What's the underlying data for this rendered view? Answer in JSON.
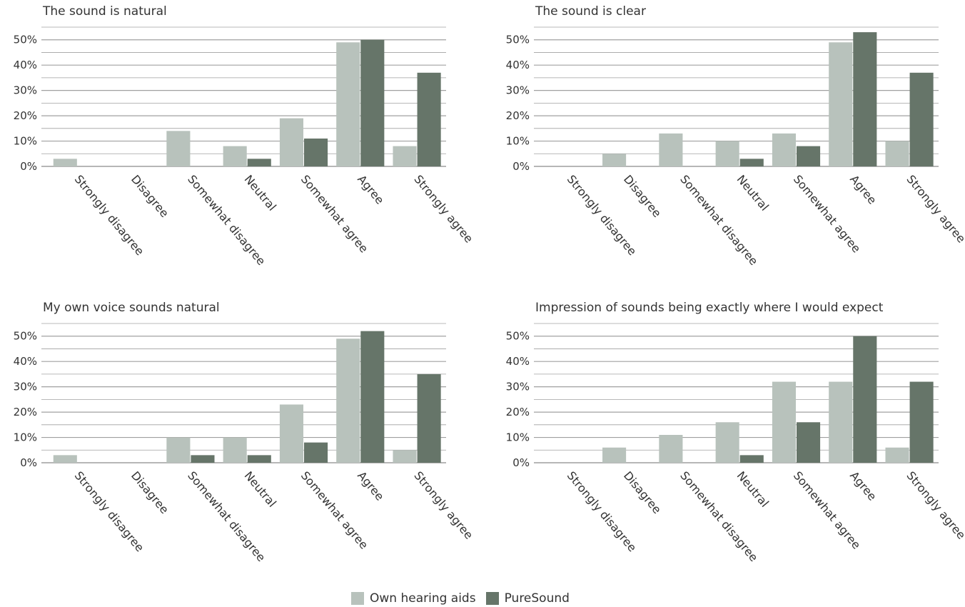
{
  "colors": {
    "own": "#b8c2bc",
    "pure": "#667569",
    "grid": "#a0a0a0",
    "text": "#333333"
  },
  "legend": {
    "own_label": "Own hearing aids",
    "pure_label": "PureSound"
  },
  "chart_data": [
    {
      "type": "bar",
      "title": "The sound is natural",
      "categories": [
        "Strongly disagree",
        "Disagree",
        "Somewhat disagree",
        "Neutral",
        "Somewhat agree",
        "Agree",
        "Strongly agree"
      ],
      "yticks": [
        "0%",
        "10%",
        "20%",
        "30%",
        "40%",
        "50%"
      ],
      "ylim": [
        0,
        55
      ],
      "grid": true,
      "legend": "bottom",
      "series": [
        {
          "name": "Own hearing aids",
          "values": [
            3,
            0,
            14,
            8,
            19,
            49,
            8
          ]
        },
        {
          "name": "PureSound",
          "values": [
            0,
            0,
            0,
            3,
            11,
            50,
            37
          ]
        }
      ]
    },
    {
      "type": "bar",
      "title": "The sound is clear",
      "categories": [
        "Strongly disagree",
        "Disagree",
        "Somewhat disagree",
        "Neutral",
        "Somewhat agree",
        "Agree",
        "Strongly agree"
      ],
      "yticks": [
        "0%",
        "10%",
        "20%",
        "30%",
        "40%",
        "50%"
      ],
      "ylim": [
        0,
        55
      ],
      "grid": true,
      "legend": "bottom",
      "series": [
        {
          "name": "Own hearing aids",
          "values": [
            0,
            5,
            13,
            10,
            13,
            49,
            10
          ]
        },
        {
          "name": "PureSound",
          "values": [
            0,
            0,
            0,
            3,
            8,
            53,
            37
          ]
        }
      ]
    },
    {
      "type": "bar",
      "title": "My own voice sounds natural",
      "categories": [
        "Strongly disagree",
        "Disagree",
        "Somewhat disagree",
        "Neutral",
        "Somewhat agree",
        "Agree",
        "Strongly agree"
      ],
      "yticks": [
        "0%",
        "10%",
        "20%",
        "30%",
        "40%",
        "50%"
      ],
      "ylim": [
        0,
        55
      ],
      "grid": true,
      "legend": "bottom",
      "series": [
        {
          "name": "Own hearing aids",
          "values": [
            3,
            0,
            10,
            10,
            23,
            49,
            5
          ]
        },
        {
          "name": "PureSound",
          "values": [
            0,
            0,
            3,
            3,
            8,
            52,
            35
          ]
        }
      ]
    },
    {
      "type": "bar",
      "title": "Impression of sounds being exactly where I would expect",
      "categories": [
        "Strongly disagree",
        "Disagree",
        "Somewhat disagree",
        "Neutral",
        "Somewhat agree",
        "Agree",
        "Strongly agree"
      ],
      "yticks": [
        "0%",
        "10%",
        "20%",
        "30%",
        "40%",
        "50%"
      ],
      "ylim": [
        0,
        55
      ],
      "grid": true,
      "legend": "bottom",
      "series": [
        {
          "name": "Own hearing aids",
          "values": [
            0,
            6,
            11,
            16,
            32,
            32,
            6
          ]
        },
        {
          "name": "PureSound",
          "values": [
            0,
            0,
            0,
            3,
            16,
            50,
            32
          ]
        }
      ]
    }
  ]
}
